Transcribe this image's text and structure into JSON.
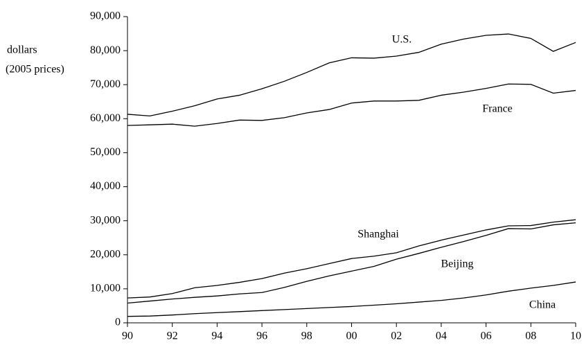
{
  "chart_data": {
    "type": "line",
    "ylabel": [
      "dollars",
      "(2005 prices)"
    ],
    "x": [
      1990,
      1991,
      1992,
      1993,
      1994,
      1995,
      1996,
      1997,
      1998,
      1999,
      2000,
      2001,
      2002,
      2003,
      2004,
      2005,
      2006,
      2007,
      2008,
      2009,
      2010
    ],
    "series": [
      {
        "name": "U.S.",
        "color": "#000000",
        "values": [
          61300,
          60800,
          62200,
          63800,
          65800,
          66900,
          68800,
          71000,
          73600,
          76400,
          77900,
          77800,
          78400,
          79500,
          81900,
          83400,
          84500,
          84900,
          83600,
          79800,
          82400
        ]
      },
      {
        "name": "France",
        "color": "#000000",
        "values": [
          58000,
          58200,
          58400,
          57800,
          58600,
          59600,
          59500,
          60300,
          61700,
          62700,
          64600,
          65200,
          65200,
          65400,
          66900,
          67800,
          68900,
          70200,
          70100,
          67500,
          68300
        ]
      },
      {
        "name": "Shanghai",
        "color": "#000000",
        "values": [
          7300,
          7600,
          8600,
          10300,
          11000,
          11900,
          13000,
          14600,
          15900,
          17400,
          18900,
          19600,
          20600,
          22600,
          24300,
          25800,
          27300,
          28500,
          28600,
          29600,
          30300
        ]
      },
      {
        "name": "Beijing",
        "color": "#000000",
        "values": [
          5800,
          6400,
          7000,
          7500,
          7900,
          8500,
          8900,
          10400,
          12200,
          13800,
          15200,
          16600,
          18700,
          20400,
          22200,
          23900,
          25700,
          27700,
          27600,
          28800,
          29400
        ]
      },
      {
        "name": "China",
        "color": "#000000",
        "values": [
          1900,
          2000,
          2300,
          2700,
          3000,
          3300,
          3600,
          3900,
          4200,
          4500,
          4800,
          5200,
          5600,
          6100,
          6600,
          7300,
          8200,
          9300,
          10200,
          11000,
          12000
        ]
      }
    ],
    "xlim": [
      1990,
      2010
    ],
    "xticks": [
      {
        "value": 1990,
        "label": "90"
      },
      {
        "value": 1992,
        "label": "92"
      },
      {
        "value": 1994,
        "label": "94"
      },
      {
        "value": 1996,
        "label": "96"
      },
      {
        "value": 1998,
        "label": "98"
      },
      {
        "value": 2000,
        "label": "00"
      },
      {
        "value": 2002,
        "label": "02"
      },
      {
        "value": 2004,
        "label": "04"
      },
      {
        "value": 2006,
        "label": "06"
      },
      {
        "value": 2008,
        "label": "08"
      },
      {
        "value": 2010,
        "label": "10"
      }
    ],
    "ylim": [
      0,
      90000
    ],
    "yticks": [
      0,
      {
        "value": 10000,
        "label": "10,000"
      },
      {
        "value": 20000,
        "label": "20,000"
      },
      {
        "value": 30000,
        "label": "30,000"
      },
      {
        "value": 40000,
        "label": "40,000"
      },
      {
        "value": 50000,
        "label": "50,000"
      },
      {
        "value": 60000,
        "label": "60,000"
      },
      {
        "value": 70000,
        "label": "70,000"
      },
      {
        "value": 80000,
        "label": "80,000"
      },
      {
        "value": 90000,
        "label": "90,000"
      }
    ],
    "grid": false
  }
}
